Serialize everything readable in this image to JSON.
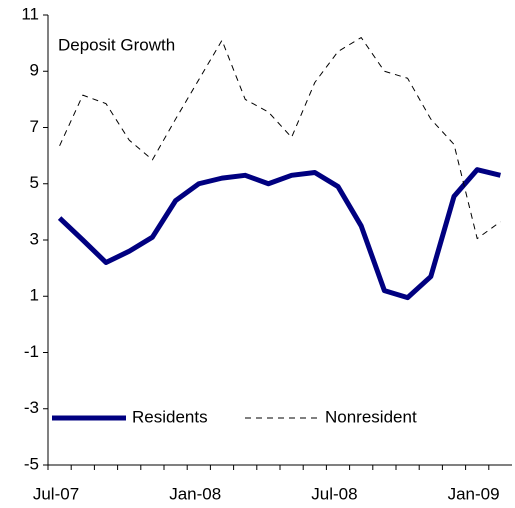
{
  "chart_data": {
    "type": "line",
    "annotation": "Deposit Growth",
    "categories": [
      "Jul-07",
      null,
      null,
      null,
      null,
      null,
      "Jan-08",
      null,
      null,
      null,
      null,
      null,
      "Jul-08",
      null,
      null,
      null,
      null,
      null,
      "Jan-09",
      null
    ],
    "series": [
      {
        "name": "Residents",
        "color": "#000080",
        "dash": "solid",
        "width": 5,
        "values": [
          3.78,
          3.0,
          2.2,
          2.6,
          3.1,
          4.4,
          5.0,
          5.2,
          5.3,
          5.0,
          5.3,
          5.4,
          4.9,
          3.5,
          1.2,
          0.95,
          1.7,
          4.55,
          5.5,
          5.3
        ]
      },
      {
        "name": "Nonresident",
        "color": "#000000",
        "dash": "dashed",
        "width": 1,
        "values": [
          6.35,
          8.15,
          7.85,
          6.55,
          5.85,
          7.3,
          8.7,
          10.1,
          8.0,
          7.55,
          6.65,
          8.6,
          9.7,
          10.2,
          9.0,
          8.75,
          7.3,
          6.4,
          3.05,
          3.65
        ]
      }
    ],
    "ylim": [
      -5,
      11
    ],
    "yticks": [
      -5,
      -3,
      -1,
      1,
      3,
      5,
      7,
      9,
      11
    ],
    "grid": false,
    "legend": "bottom-left"
  }
}
